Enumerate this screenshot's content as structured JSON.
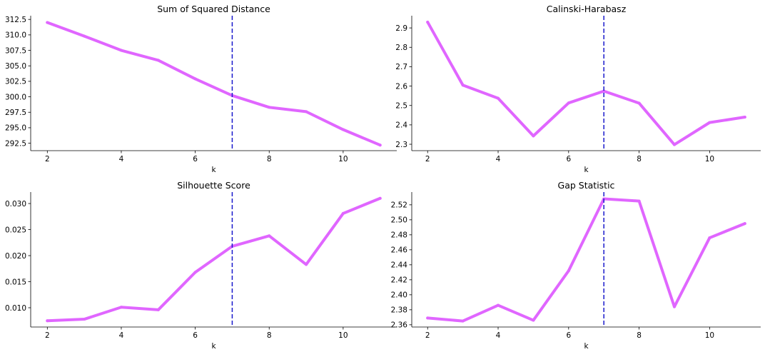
{
  "style": {
    "line_color": "#e066ff",
    "vline_color": "#1a1acc"
  },
  "chart_data": [
    {
      "type": "line",
      "title": "Sum of Squared Distance",
      "xlabel": "k",
      "ylabel": "",
      "x": [
        2,
        3,
        4,
        5,
        6,
        7,
        8,
        9,
        10,
        11
      ],
      "series": [
        {
          "values": [
            312.0,
            309.8,
            307.5,
            305.9,
            302.9,
            300.2,
            298.3,
            297.6,
            294.7,
            292.2
          ]
        }
      ],
      "xlim": [
        1.55,
        11.45
      ],
      "ylim": [
        291.3,
        313.1
      ],
      "xticks": [
        2,
        4,
        6,
        8,
        10
      ],
      "yticks": [
        292.5,
        295.0,
        297.5,
        300.0,
        302.5,
        305.0,
        307.5,
        310.0,
        312.5
      ],
      "ytick_decimals": 1,
      "vline_x": 7,
      "grid": false
    },
    {
      "type": "line",
      "title": "Calinski-Harabasz",
      "xlabel": "k",
      "ylabel": "",
      "x": [
        2,
        3,
        4,
        5,
        6,
        7,
        8,
        9,
        10,
        11
      ],
      "series": [
        {
          "values": [
            2.93,
            2.605,
            2.537,
            2.343,
            2.513,
            2.574,
            2.512,
            2.298,
            2.412,
            2.44
          ]
        }
      ],
      "xlim": [
        1.55,
        11.45
      ],
      "ylim": [
        2.267,
        2.963
      ],
      "xticks": [
        2,
        4,
        6,
        8,
        10
      ],
      "yticks": [
        2.3,
        2.4,
        2.5,
        2.6,
        2.7,
        2.8,
        2.9
      ],
      "ytick_decimals": 1,
      "vline_x": 7,
      "grid": false
    },
    {
      "type": "line",
      "title": "Silhouette Score",
      "xlabel": "k",
      "ylabel": "",
      "x": [
        2,
        3,
        4,
        5,
        6,
        7,
        8,
        9,
        10,
        11
      ],
      "series": [
        {
          "values": [
            0.0075,
            0.0078,
            0.0101,
            0.0096,
            0.0168,
            0.0218,
            0.0238,
            0.0183,
            0.0281,
            0.031
          ]
        }
      ],
      "xlim": [
        1.55,
        11.45
      ],
      "ylim": [
        0.0063,
        0.0322
      ],
      "xticks": [
        2,
        4,
        6,
        8,
        10
      ],
      "yticks": [
        0.01,
        0.015,
        0.02,
        0.025,
        0.03
      ],
      "ytick_decimals": 3,
      "vline_x": 7,
      "grid": false
    },
    {
      "type": "line",
      "title": "Gap Statistic",
      "xlabel": "k",
      "ylabel": "",
      "x": [
        2,
        3,
        4,
        5,
        6,
        7,
        8,
        9,
        10,
        11
      ],
      "series": [
        {
          "values": [
            2.369,
            2.365,
            2.386,
            2.366,
            2.432,
            2.528,
            2.525,
            2.384,
            2.476,
            2.495
          ]
        }
      ],
      "xlim": [
        1.55,
        11.45
      ],
      "ylim": [
        2.357,
        2.537
      ],
      "xticks": [
        2,
        4,
        6,
        8,
        10
      ],
      "yticks": [
        2.36,
        2.38,
        2.4,
        2.42,
        2.44,
        2.46,
        2.48,
        2.5,
        2.52
      ],
      "ytick_decimals": 2,
      "vline_x": 7,
      "grid": false
    }
  ]
}
